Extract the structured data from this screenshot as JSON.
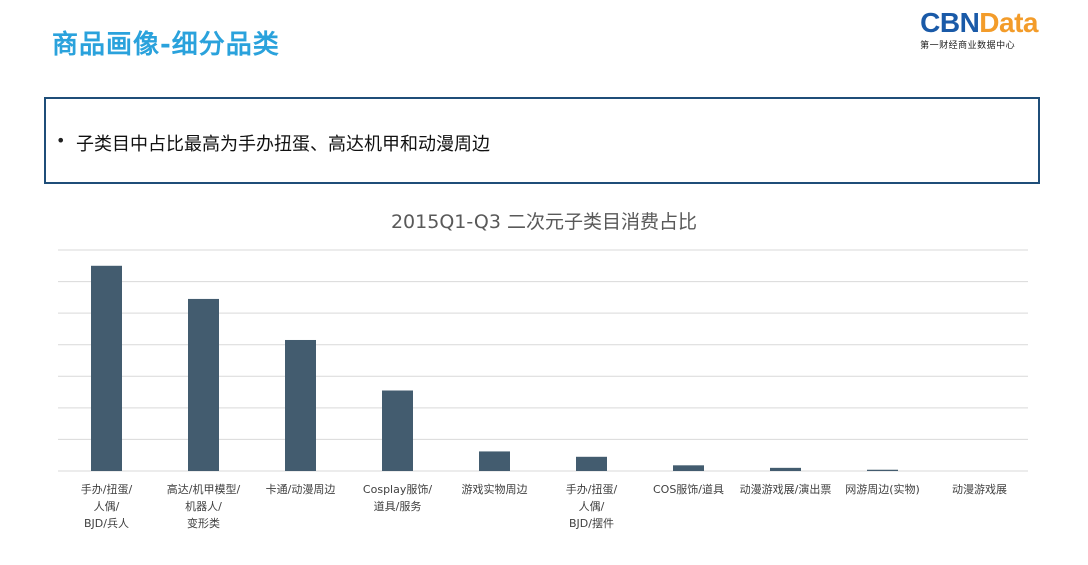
{
  "header": {
    "title": "商品画像-细分品类",
    "logo_left": "CBN",
    "logo_right": "Data",
    "logo_subtitle": "第一财经商业数据中心"
  },
  "callout": {
    "bullet": "•",
    "text": "子类目中占比最高为手办扭蛋、高达机甲和动漫周边"
  },
  "colors": {
    "title": "#2aa2dc",
    "bar": "#435c6f",
    "grid": "#d9d9d9",
    "border": "#1f4e79"
  },
  "chart_data": {
    "type": "bar",
    "title": "2015Q1-Q3 二次元子类目消费占比",
    "categories": [
      "手办/扭蛋/\n人偶/\nBJD/兵人",
      "高达/机甲模型/\n机器人/\n变形类",
      "卡通/动漫周边",
      "Cosplay服饰/\n道具/服务",
      "游戏实物周边",
      "手办/扭蛋/\n人偶/\nBJD/摆件",
      "COS服饰/道具",
      "动漫游戏展/演出票",
      "网游周边(实物)",
      "动漫游戏展"
    ],
    "values": [
      6.5,
      5.45,
      4.15,
      2.55,
      0.62,
      0.45,
      0.18,
      0.1,
      0.04,
      0.0
    ],
    "ylim": [
      0,
      7
    ],
    "gridlines": 7,
    "grid": true,
    "legend": "none",
    "xlabel": "",
    "ylabel": ""
  }
}
